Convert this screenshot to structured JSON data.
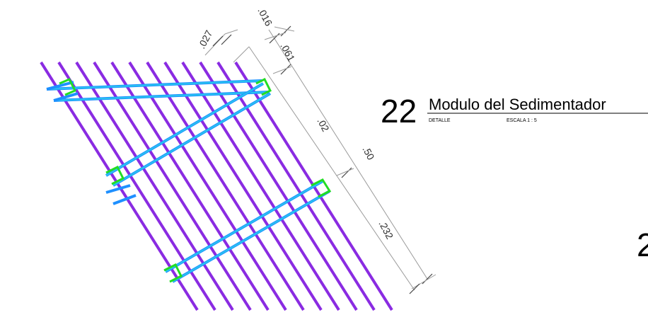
{
  "colors": {
    "slat": "#8a2be2",
    "beam": "#29c4f0",
    "beam_edge": "#1e90ff",
    "bracket": "#22dd22",
    "dimension": "#9a9a9a",
    "background": "#ffffff"
  },
  "detail_title": {
    "number": "22",
    "name": "Modulo del Sedimentador",
    "type": "DETALLE",
    "scale": "ESCALA 1 : 5"
  },
  "dimensions": {
    "slat_spacing": ".027",
    "slat_thickness": ".016",
    "top_offset": ".061",
    "segment_upper": ".02",
    "total_length": ".50",
    "segment_lower": ".232"
  },
  "cut_off_label": "2",
  "slat_count": 12
}
